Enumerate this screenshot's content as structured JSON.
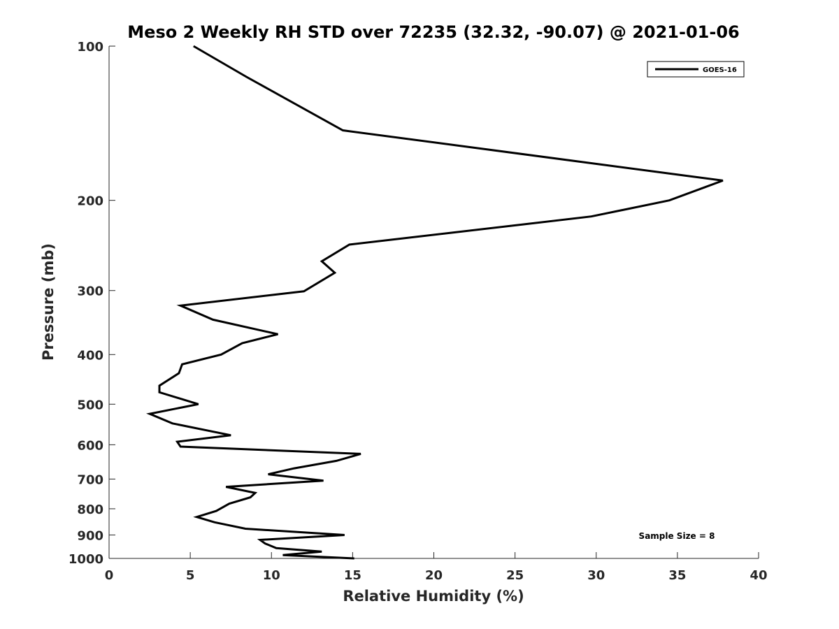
{
  "chart_data": {
    "type": "line",
    "title": "Meso 2 Weekly RH STD over 72235 (32.32, -90.07) @ 2021-01-06",
    "xlabel": "Relative Humidity (%)",
    "ylabel": "Pressure (mb)",
    "xlim": [
      0,
      40
    ],
    "ylim": [
      100,
      1000
    ],
    "yscale": "log",
    "y_reversed": true,
    "grid": false,
    "legend_position": "top-right",
    "x_ticks": [
      0,
      5,
      10,
      15,
      20,
      25,
      30,
      35,
      40
    ],
    "x_tick_labels": [
      "0",
      "5",
      "10",
      "15",
      "20",
      "25",
      "30",
      "35",
      "40"
    ],
    "y_ticks": [
      100,
      200,
      300,
      400,
      500,
      600,
      700,
      800,
      900,
      1000
    ],
    "y_tick_labels": [
      "100",
      "200",
      "300",
      "400",
      "500",
      "600",
      "700",
      "800",
      "900",
      "1000"
    ],
    "series": [
      {
        "name": "GOES-16",
        "color": "#000000",
        "x": [
          5.2,
          8.5,
          14.4,
          37.8,
          34.5,
          29.7,
          14.8,
          13.1,
          13.9,
          12.0,
          4.4,
          6.4,
          10.4,
          8.2,
          6.9,
          4.5,
          4.3,
          3.1,
          3.1,
          5.5,
          2.5,
          3.9,
          7.5,
          4.2,
          4.4,
          15.5,
          14.0,
          11.4,
          9.8,
          13.2,
          7.2,
          9.0,
          8.7,
          7.4,
          6.6,
          5.4,
          6.5,
          8.4,
          14.5,
          9.3,
          9.6,
          10.3,
          13.1,
          10.7,
          15.1
        ],
        "y": [
          100,
          115,
          146,
          183,
          200,
          215,
          244,
          263,
          277,
          301,
          321,
          342,
          365,
          380,
          400,
          418,
          435,
          460,
          474,
          500,
          522,
          545,
          575,
          592,
          605,
          625,
          645,
          667,
          685,
          705,
          725,
          745,
          760,
          782,
          808,
          830,
          850,
          875,
          900,
          920,
          935,
          955,
          970,
          985,
          1000
        ]
      }
    ],
    "legend": [
      "GOES-16"
    ],
    "annotations": [
      "Sample Size = 8"
    ]
  }
}
